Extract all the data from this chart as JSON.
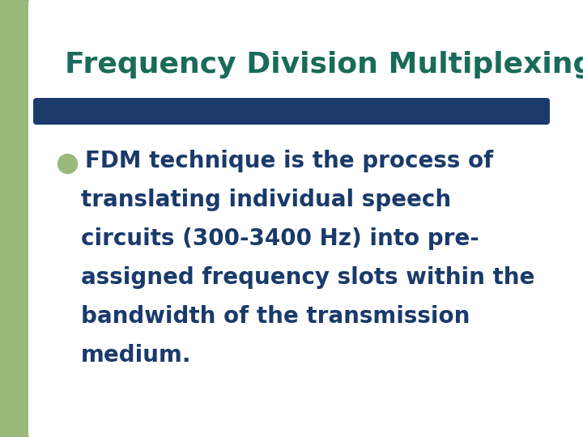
{
  "title": "Frequency Division Multiplexing",
  "title_color": "#1a6b5a",
  "title_fontsize": 26,
  "title_bold": true,
  "bullet_color": "#1a3a6b",
  "bullet_fontsize": 20,
  "background_color": "#ffffff",
  "sidebar_color": "#9aba7c",
  "divider_color": "#1a3a6b",
  "bullet_marker": "●",
  "bullet_marker_color": "#9aba7c",
  "bullet_lines": [
    "FDM technique is the process of",
    "translating individual speech",
    "circuits (300-3400 Hz) into pre-",
    "assigned frequency slots within the",
    "bandwidth of the transmission",
    "medium."
  ],
  "fig_width": 7.2,
  "fig_height": 5.4,
  "dpi": 100
}
